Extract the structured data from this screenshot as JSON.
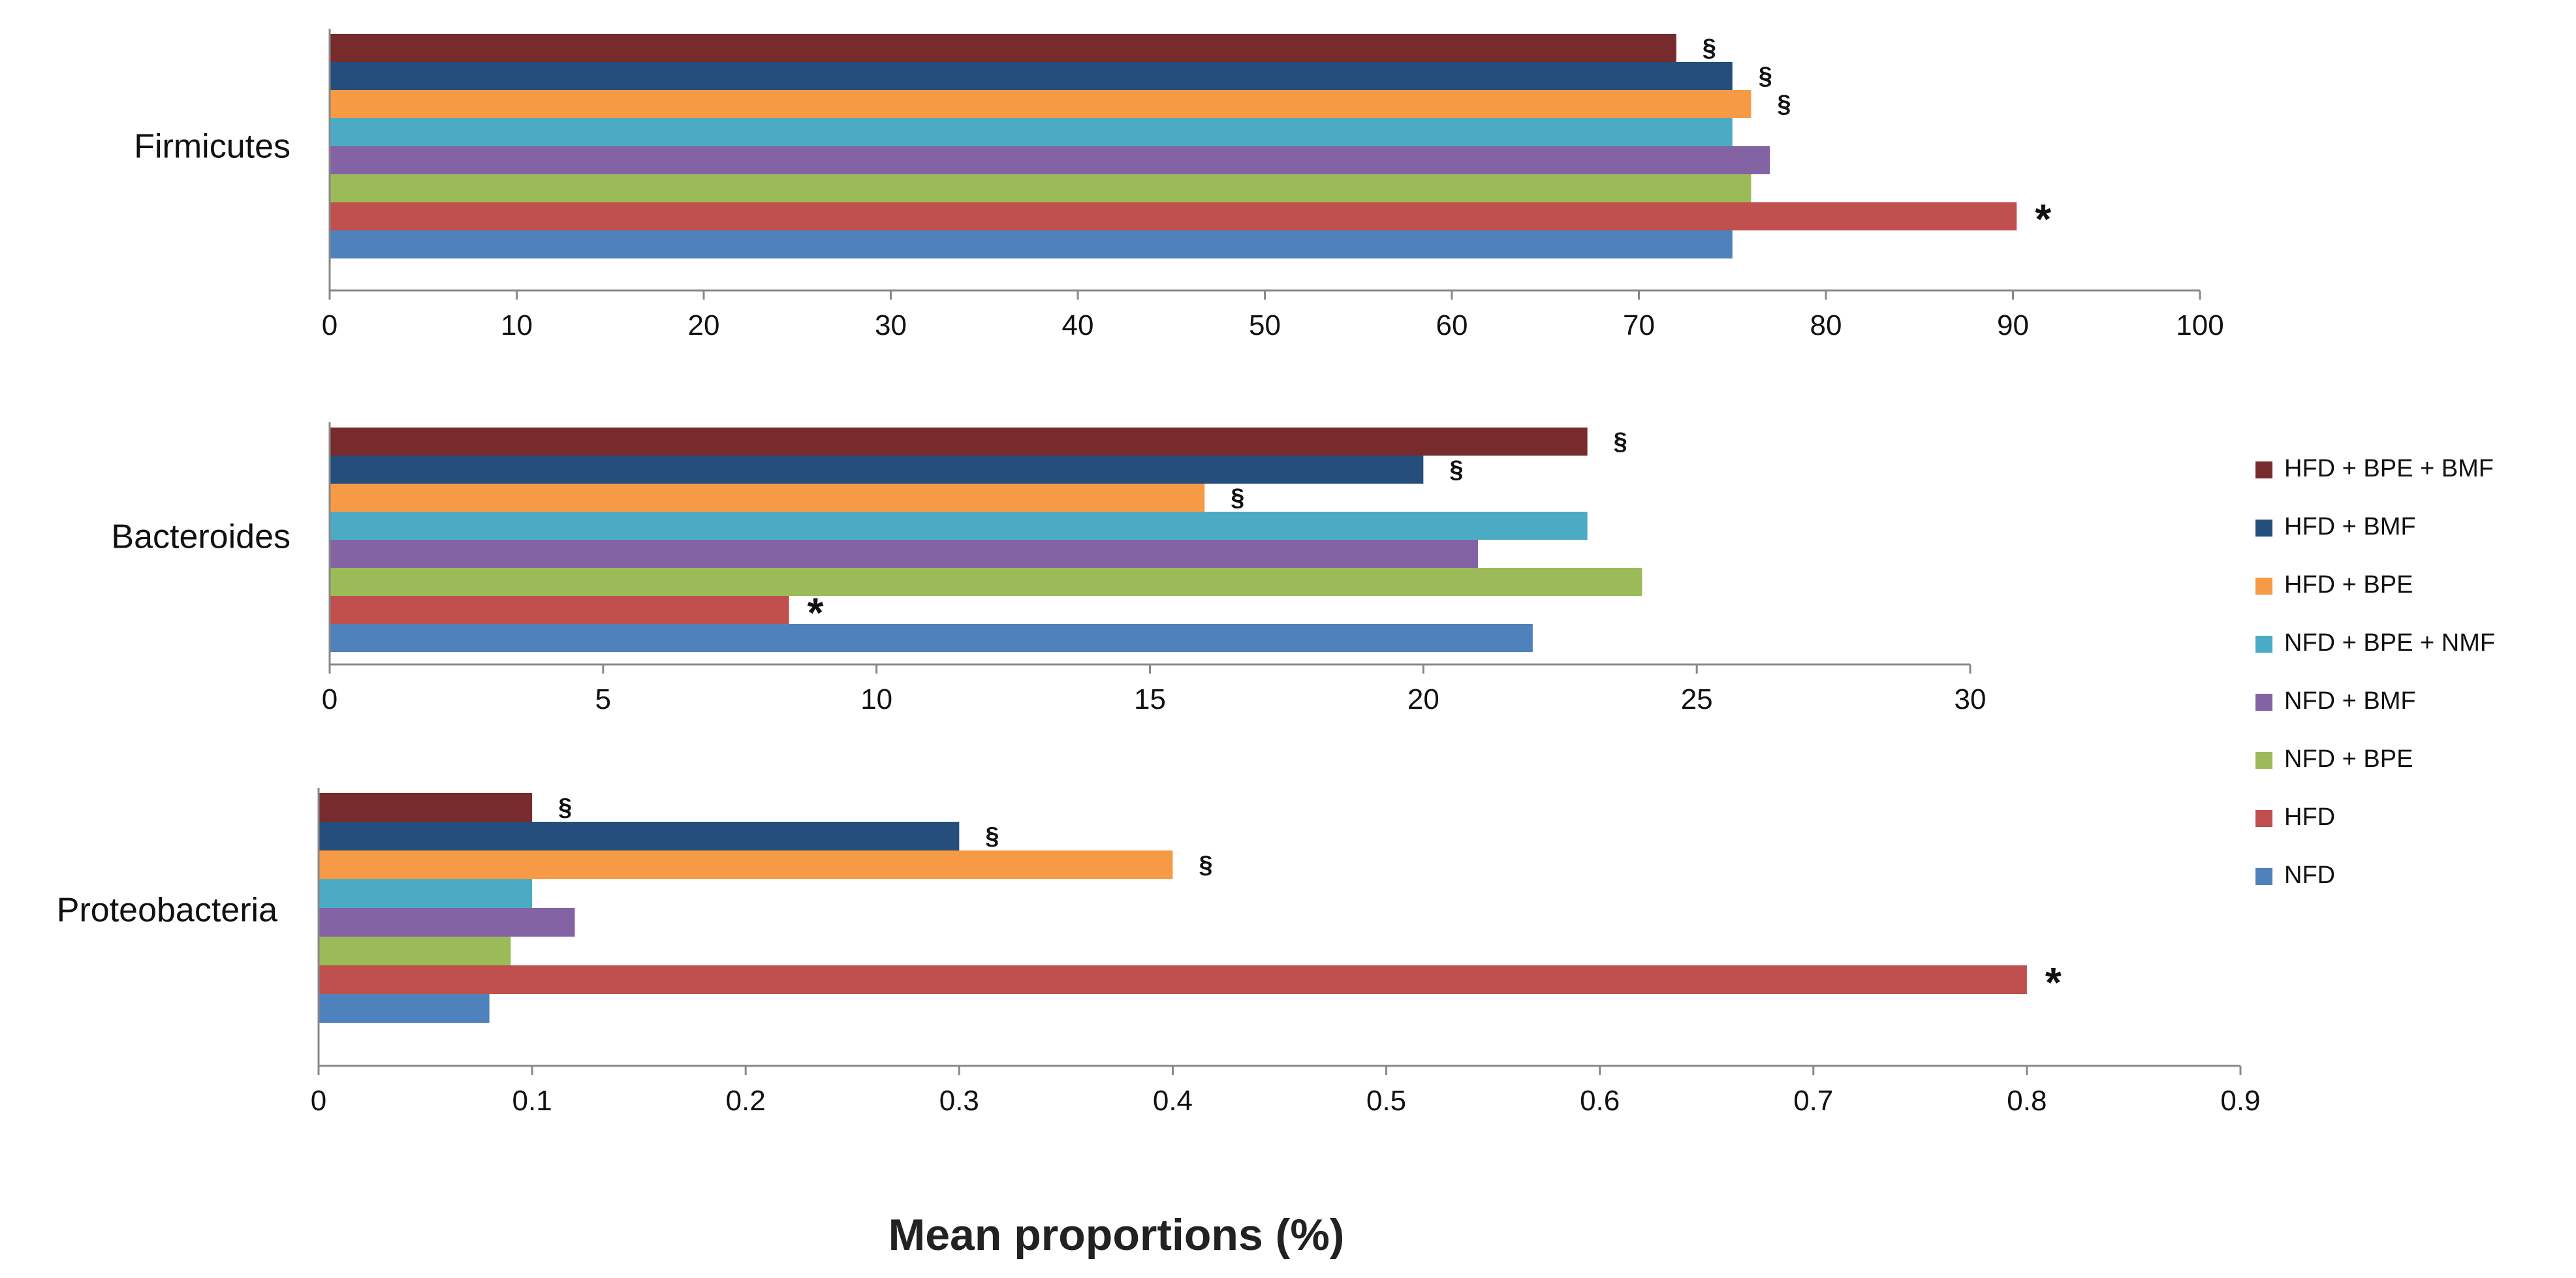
{
  "chart_data": {
    "type": "bar",
    "orientation": "horizontal",
    "xlabel": "Mean proportions (%)",
    "series": [
      {
        "name": "HFD + BPE + BMF",
        "color": "#772b2d"
      },
      {
        "name": "HFD + BMF",
        "color": "#254e7c"
      },
      {
        "name": "HFD + BPE",
        "color": "#f79a46"
      },
      {
        "name": "NFD + BPE + NMF",
        "color": "#4babc5"
      },
      {
        "name": "NFD + BMF",
        "color": "#8463a5"
      },
      {
        "name": "NFD + BPE",
        "color": "#9bbb59"
      },
      {
        "name": "HFD",
        "color": "#c0504d"
      },
      {
        "name": "NFD",
        "color": "#4f81bd"
      }
    ],
    "legend_position": "right",
    "panels": [
      {
        "category": "Firmicutes",
        "xlim": [
          0,
          100
        ],
        "ticks": [
          "0",
          "10",
          "20",
          "30",
          "40",
          "50",
          "60",
          "70",
          "80",
          "90",
          "100"
        ],
        "values": [
          72,
          75,
          76,
          75,
          77,
          76,
          90.2,
          75
        ],
        "annotations": [
          "§",
          "§",
          "§",
          "",
          "",
          "",
          "*",
          ""
        ]
      },
      {
        "category": "Bacteroides",
        "xlim": [
          0,
          30
        ],
        "ticks": [
          "0",
          "5",
          "10",
          "15",
          "20",
          "25",
          "30"
        ],
        "values": [
          23,
          20,
          16,
          23,
          21,
          24,
          8.4,
          22
        ],
        "annotations": [
          "§",
          "§",
          "§",
          "",
          "",
          "",
          "*",
          ""
        ]
      },
      {
        "category": "Proteobacteria",
        "xlim": [
          0,
          0.9
        ],
        "ticks": [
          "0",
          "0.1",
          "0.2",
          "0.3",
          "0.4",
          "0.5",
          "0.6",
          "0.7",
          "0.8",
          "0.9"
        ],
        "values": [
          0.1,
          0.3,
          0.4,
          0.1,
          0.12,
          0.09,
          0.8,
          0.08
        ],
        "annotations": [
          "§",
          "§",
          "§",
          "",
          "",
          "",
          "*",
          ""
        ]
      }
    ]
  }
}
